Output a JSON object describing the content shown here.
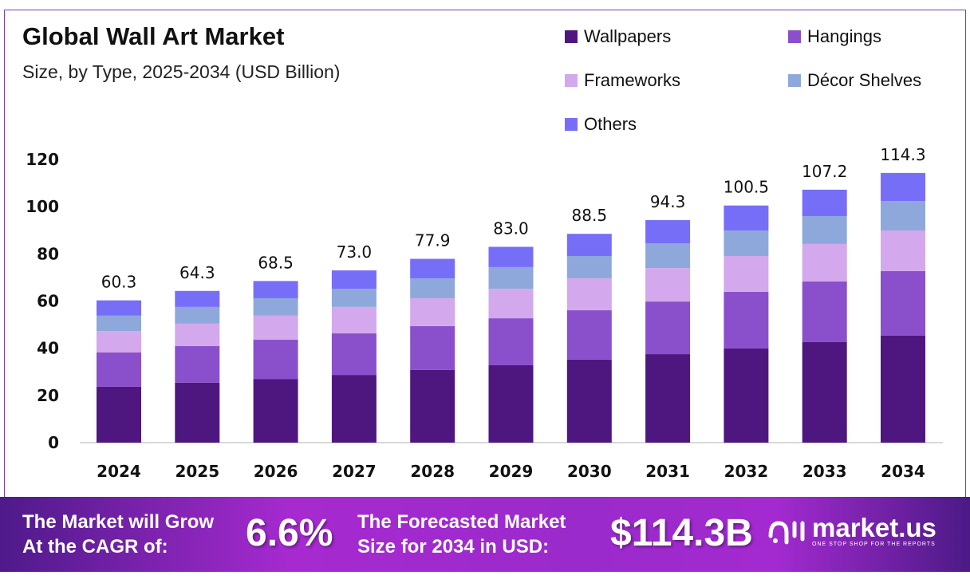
{
  "header": {
    "title": "Global Wall Art Market",
    "subtitle": "Size, by Type, 2025-2034 (USD Billion)"
  },
  "chart_data": {
    "type": "bar",
    "stacked": true,
    "title": "Global Wall Art Market",
    "subtitle": "Size, by Type, 2025-2034 (USD Billion)",
    "categories": [
      "2024",
      "2025",
      "2026",
      "2027",
      "2028",
      "2029",
      "2030",
      "2031",
      "2032",
      "2033",
      "2034"
    ],
    "series": [
      {
        "name": "Wallpapers",
        "color": "#4e1780",
        "values": [
          23.7,
          25.4,
          27.0,
          28.7,
          30.8,
          32.8,
          35.2,
          37.5,
          39.9,
          42.6,
          45.3
        ]
      },
      {
        "name": "Hangings",
        "color": "#8a4fcb",
        "values": [
          14.5,
          15.5,
          16.6,
          17.6,
          18.6,
          19.9,
          20.9,
          22.3,
          24.0,
          25.7,
          27.4
        ]
      },
      {
        "name": "Frameworks",
        "color": "#d3a8ec",
        "values": [
          9.1,
          9.5,
          10.2,
          11.2,
          11.8,
          12.5,
          13.5,
          14.2,
          15.2,
          15.9,
          17.2
        ]
      },
      {
        "name": "Décor Shelves",
        "color": "#8fa8dc",
        "values": [
          6.5,
          7.1,
          7.4,
          7.7,
          8.4,
          9.2,
          9.5,
          10.5,
          10.8,
          11.8,
          12.5
        ]
      },
      {
        "name": "Others",
        "color": "#776ef8",
        "values": [
          6.5,
          6.8,
          7.3,
          7.8,
          8.3,
          8.6,
          9.4,
          9.8,
          10.6,
          11.2,
          11.9
        ]
      }
    ],
    "totals": [
      "60.3",
      "64.3",
      "68.5",
      "73.0",
      "77.9",
      "83.0",
      "88.5",
      "94.3",
      "100.5",
      "107.2",
      "114.3"
    ],
    "yticks": [
      "0",
      "20",
      "40",
      "60",
      "80",
      "100",
      "120"
    ],
    "ylim": [
      0,
      120
    ],
    "grid": false,
    "legend_position": "top-right"
  },
  "banner": {
    "cagr_label_1": "The Market will Grow",
    "cagr_label_2": "At the CAGR of:",
    "cagr_value": "6.6%",
    "forecast_label_1": "The Forecasted Market",
    "forecast_label_2": "Size for 2034 in USD:",
    "forecast_value": "$114.3B",
    "logo_name": "market.us",
    "logo_tagline": "ONE STOP SHOP FOR THE REPORTS"
  }
}
